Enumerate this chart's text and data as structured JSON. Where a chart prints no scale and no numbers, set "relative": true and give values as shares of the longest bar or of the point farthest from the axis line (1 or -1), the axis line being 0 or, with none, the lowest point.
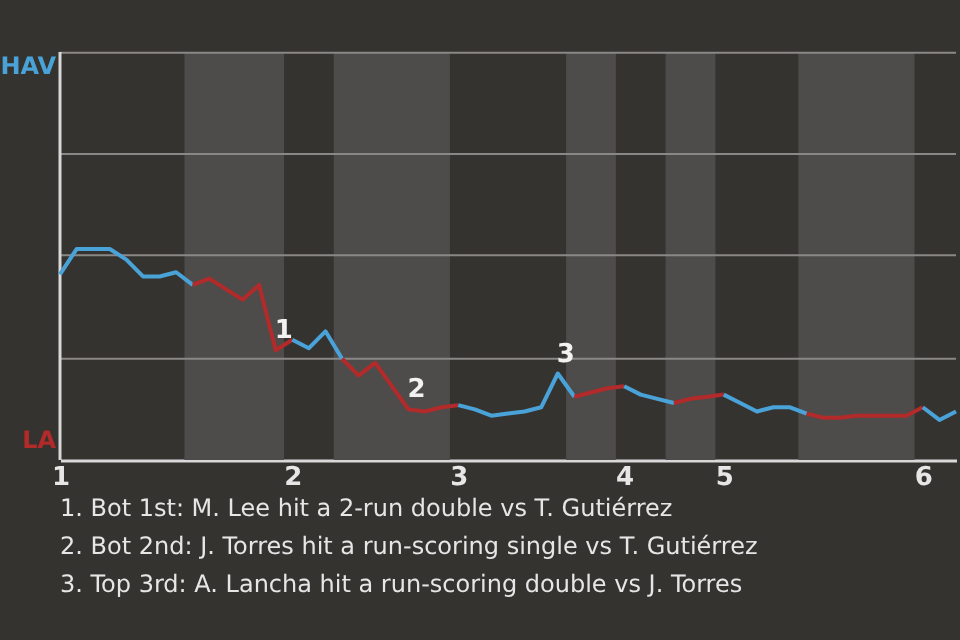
{
  "chart_data": {
    "type": "line",
    "relative": true,
    "ref_lines": [
      {
        "axis": "y",
        "value": 0.48,
        "color": "#8a8886"
      },
      {
        "axis": "y",
        "value": 0.97,
        "color": "#8a8886"
      },
      {
        "axis": "y",
        "value": 1.45,
        "color": "#8a8886"
      },
      {
        "axis": "y",
        "value": 1.93,
        "color": "#8a8886"
      }
    ],
    "categories": [
      "1",
      null,
      null,
      null,
      null,
      null,
      null,
      null,
      null,
      null,
      null,
      null,
      null,
      null,
      "2",
      null,
      null,
      null,
      null,
      null,
      null,
      null,
      null,
      null,
      "3",
      null,
      null,
      null,
      null,
      null,
      null,
      null,
      null,
      null,
      "4",
      null,
      null,
      null,
      null,
      null,
      "5",
      null,
      null,
      null,
      null,
      null,
      null,
      null,
      null,
      null,
      null,
      null,
      "6",
      null,
      null
    ],
    "series": [
      {
        "color": "#4aa3d8",
        "values": [
          0.88,
          1,
          1,
          1,
          0.95,
          0.87,
          0.87,
          0.89,
          0.83,
          null,
          null,
          null,
          null,
          null,
          null,
          null,
          null,
          null,
          null,
          null,
          null,
          null,
          null,
          null,
          null,
          null,
          null,
          null,
          null,
          null,
          null,
          null,
          null,
          null,
          null,
          null,
          null,
          null,
          null,
          null,
          null,
          null,
          null,
          null,
          null,
          null,
          null,
          null,
          null,
          null,
          null,
          null,
          null,
          null,
          null
        ]
      },
      {
        "color": "#b22a2a",
        "values": [
          null,
          null,
          null,
          null,
          null,
          null,
          null,
          null,
          0.83,
          0.86,
          0.81,
          0.76,
          0.83,
          0.52,
          0.57,
          null,
          null,
          null,
          null,
          null,
          null,
          null,
          null,
          null,
          null,
          null,
          null,
          null,
          null,
          null,
          null,
          null,
          null,
          null,
          null,
          null,
          null,
          null,
          null,
          null,
          null,
          null,
          null,
          null,
          null,
          null,
          null,
          null,
          null,
          null,
          null,
          null,
          null,
          null,
          null
        ]
      },
      {
        "color": "#4aa3d8",
        "values": [
          null,
          null,
          null,
          null,
          null,
          null,
          null,
          null,
          null,
          null,
          null,
          null,
          null,
          null,
          0.57,
          0.53,
          0.61,
          0.48,
          null,
          null,
          null,
          null,
          null,
          null,
          null,
          null,
          null,
          null,
          null,
          null,
          null,
          null,
          null,
          null,
          null,
          null,
          null,
          null,
          null,
          null,
          null,
          null,
          null,
          null,
          null,
          null,
          null,
          null,
          null,
          null,
          null,
          null,
          null,
          null,
          null
        ]
      },
      {
        "color": "#b22a2a",
        "values": [
          null,
          null,
          null,
          null,
          null,
          null,
          null,
          null,
          null,
          null,
          null,
          null,
          null,
          null,
          null,
          null,
          null,
          0.48,
          0.4,
          0.46,
          0.35,
          0.24,
          0.23,
          0.25,
          0.26,
          null,
          null,
          null,
          null,
          null,
          null,
          null,
          null,
          null,
          null,
          null,
          null,
          null,
          null,
          null,
          null,
          null,
          null,
          null,
          null,
          null,
          null,
          null,
          null,
          null,
          null,
          null,
          null,
          null,
          null
        ]
      },
      {
        "color": "#4aa3d8",
        "values": [
          null,
          null,
          null,
          null,
          null,
          null,
          null,
          null,
          null,
          null,
          null,
          null,
          null,
          null,
          null,
          null,
          null,
          null,
          null,
          null,
          null,
          null,
          null,
          null,
          0.26,
          0.24,
          0.21,
          0.22,
          0.23,
          0.25,
          0.41,
          0.3,
          null,
          null,
          null,
          null,
          null,
          null,
          null,
          null,
          null,
          null,
          null,
          null,
          null,
          null,
          null,
          null,
          null,
          null,
          null,
          null,
          null,
          null,
          null
        ]
      },
      {
        "color": "#b22a2a",
        "values": [
          null,
          null,
          null,
          null,
          null,
          null,
          null,
          null,
          null,
          null,
          null,
          null,
          null,
          null,
          null,
          null,
          null,
          null,
          null,
          null,
          null,
          null,
          null,
          null,
          null,
          null,
          null,
          null,
          null,
          null,
          null,
          0.3,
          0.32,
          0.34,
          0.35,
          null,
          null,
          null,
          null,
          null,
          null,
          null,
          null,
          null,
          null,
          null,
          null,
          null,
          null,
          null,
          null,
          null,
          null,
          null,
          null
        ]
      },
      {
        "color": "#4aa3d8",
        "values": [
          null,
          null,
          null,
          null,
          null,
          null,
          null,
          null,
          null,
          null,
          null,
          null,
          null,
          null,
          null,
          null,
          null,
          null,
          null,
          null,
          null,
          null,
          null,
          null,
          null,
          null,
          null,
          null,
          null,
          null,
          null,
          null,
          null,
          null,
          0.35,
          0.31,
          0.29,
          0.27,
          null,
          null,
          null,
          null,
          null,
          null,
          null,
          null,
          null,
          null,
          null,
          null,
          null,
          null,
          null,
          null,
          null
        ]
      },
      {
        "color": "#b22a2a",
        "values": [
          null,
          null,
          null,
          null,
          null,
          null,
          null,
          null,
          null,
          null,
          null,
          null,
          null,
          null,
          null,
          null,
          null,
          null,
          null,
          null,
          null,
          null,
          null,
          null,
          null,
          null,
          null,
          null,
          null,
          null,
          null,
          null,
          null,
          null,
          null,
          null,
          null,
          0.27,
          0.29,
          0.3,
          0.31,
          null,
          null,
          null,
          null,
          null,
          null,
          null,
          null,
          null,
          null,
          null,
          null,
          null,
          null
        ]
      },
      {
        "color": "#4aa3d8",
        "values": [
          null,
          null,
          null,
          null,
          null,
          null,
          null,
          null,
          null,
          null,
          null,
          null,
          null,
          null,
          null,
          null,
          null,
          null,
          null,
          null,
          null,
          null,
          null,
          null,
          null,
          null,
          null,
          null,
          null,
          null,
          null,
          null,
          null,
          null,
          null,
          null,
          null,
          null,
          null,
          null,
          0.31,
          0.27,
          0.23,
          0.25,
          0.25,
          0.22,
          null,
          null,
          null,
          null,
          null,
          null,
          null,
          null,
          null
        ]
      },
      {
        "color": "#b22a2a",
        "values": [
          null,
          null,
          null,
          null,
          null,
          null,
          null,
          null,
          null,
          null,
          null,
          null,
          null,
          null,
          null,
          null,
          null,
          null,
          null,
          null,
          null,
          null,
          null,
          null,
          null,
          null,
          null,
          null,
          null,
          null,
          null,
          null,
          null,
          null,
          null,
          null,
          null,
          null,
          null,
          null,
          null,
          null,
          null,
          null,
          null,
          0.22,
          0.2,
          0.2,
          0.21,
          0.21,
          0.21,
          0.21,
          0.25,
          null,
          null
        ]
      },
      {
        "color": "#4aa3d8",
        "values": [
          null,
          null,
          null,
          null,
          null,
          null,
          null,
          null,
          null,
          null,
          null,
          null,
          null,
          null,
          null,
          null,
          null,
          null,
          null,
          null,
          null,
          null,
          null,
          null,
          null,
          null,
          null,
          null,
          null,
          null,
          null,
          null,
          null,
          null,
          null,
          null,
          null,
          null,
          null,
          null,
          null,
          null,
          null,
          null,
          null,
          null,
          null,
          null,
          null,
          null,
          null,
          null,
          0.25,
          0.19,
          0.23
        ]
      }
    ],
    "annotations": [
      "HAV",
      "LA",
      {
        "text": "1",
        "y": 0.52
      },
      {
        "text": "2",
        "y": 0.24
      },
      {
        "text": "3",
        "y": 0.41
      },
      "1. Bot 1st: M. Lee hit a 2-run double vs T. Gutiérrez",
      "2. Bot 2nd: J. Torres hit a run-scoring single vs T. Gutiérrez",
      "3. Top 3rd: A. Lancha hit a run-scoring double vs J. Torres"
    ]
  }
}
